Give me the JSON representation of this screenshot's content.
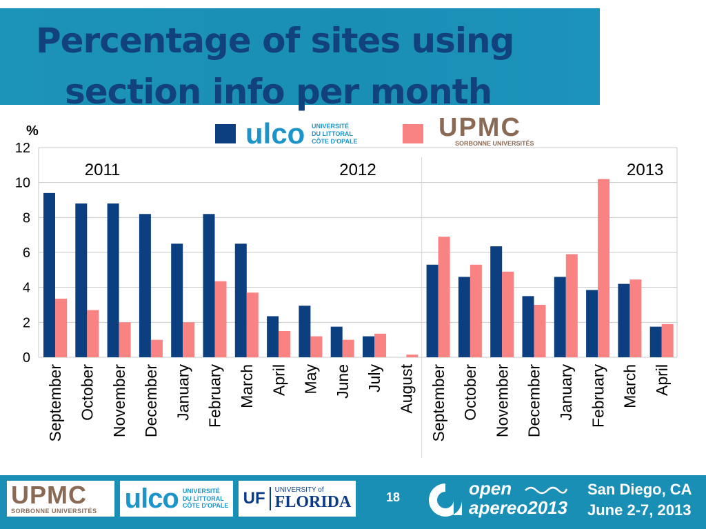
{
  "title": {
    "line1": "Percentage of sites  using",
    "line2": "section info per month"
  },
  "chart_data": {
    "type": "bar",
    "ylabel": "%",
    "ylim": [
      0,
      12
    ],
    "yticks": [
      0,
      2,
      4,
      6,
      8,
      10,
      12
    ],
    "grid": true,
    "categories": [
      "September",
      "October",
      "November",
      "December",
      "January",
      "February",
      "March",
      "April",
      "May",
      "June",
      "July",
      "August",
      "September",
      "October",
      "November",
      "December",
      "January",
      "February",
      "March",
      "April"
    ],
    "year_labels": [
      {
        "label": "2011",
        "at_index": 1.5
      },
      {
        "label": "2012",
        "at_index": 9.5
      },
      {
        "label": "2013",
        "at_index": 18.5
      }
    ],
    "series": [
      {
        "name": "ULCO",
        "color": "#0b3f7f",
        "values": [
          9.4,
          8.8,
          8.8,
          8.2,
          6.5,
          8.2,
          6.5,
          2.35,
          2.95,
          1.75,
          1.2,
          0,
          5.3,
          4.6,
          6.35,
          3.5,
          4.6,
          3.85,
          4.2,
          1.75
        ]
      },
      {
        "name": "UPMC",
        "color": "#f98383",
        "values": [
          3.35,
          2.7,
          2.0,
          1.0,
          2.0,
          4.35,
          3.7,
          1.5,
          1.2,
          1.0,
          1.35,
          0.15,
          6.9,
          5.3,
          4.9,
          3.0,
          5.9,
          10.2,
          4.45,
          1.9
        ]
      }
    ]
  },
  "legend": {
    "ulco_word": "ulco",
    "ulco_sub": [
      "UNIVERSITÉ",
      "DU LITTORAL",
      "CÔTE D'OPALE"
    ],
    "upmc_word": "UPMC",
    "upmc_sub": "SORBONNE UNIVERSITÉS"
  },
  "footer": {
    "upmc_word": "UPMC",
    "upmc_sub": "SORBONNE UNIVERSITÉS",
    "ulco_word": "ulco",
    "ulco_sub": [
      "UNIVERSITÉ",
      "DU LITTORAL",
      "CÔTE D'OPALE"
    ],
    "uf_mark": "UF",
    "uf_small": "UNIVERSITY of",
    "uf_big": "FLORIDA",
    "page": "18",
    "apereo_open": "open",
    "apereo_name": "apereo2013",
    "city": "San Diego, CA",
    "dates": "June 2-7, 2013"
  }
}
